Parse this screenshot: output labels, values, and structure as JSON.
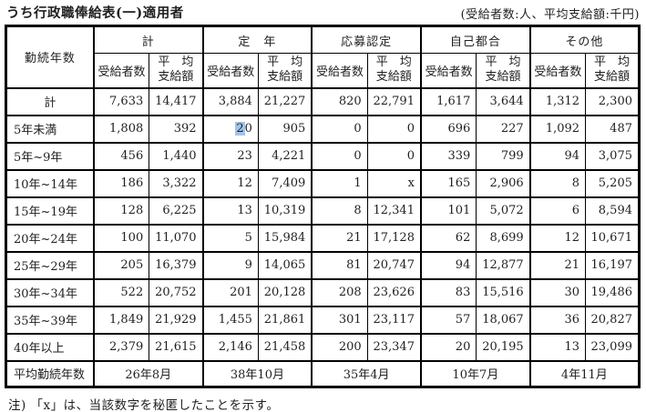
{
  "page": {
    "title": "うち行政職俸給表(一)適用者",
    "unit_note": "(受給者数:人、平均支給額:千円)",
    "footnote": "注) 「x」は、当該数字を秘匿したことを示す。"
  },
  "table": {
    "row_header_label": "勤続年数",
    "groups": [
      "計",
      "定　年",
      "応募認定",
      "自己都合",
      "その他"
    ],
    "sub_headers": {
      "recipients": "受給者数",
      "average_line1": "平　均",
      "average_line2": "支給額"
    },
    "rows": [
      {
        "label": "計",
        "cells": [
          "7,633",
          "14,417",
          "3,884",
          "21,227",
          "820",
          "22,791",
          "1,617",
          "3,644",
          "1,312",
          "2,300"
        ]
      },
      {
        "label": "5年未満",
        "cells": [
          "1,808",
          "392",
          "20",
          "905",
          "0",
          "0",
          "696",
          "227",
          "1,092",
          "487"
        ]
      },
      {
        "label": "5年~9年",
        "cells": [
          "456",
          "1,440",
          "23",
          "4,221",
          "0",
          "0",
          "339",
          "799",
          "94",
          "3,075"
        ]
      },
      {
        "label": "10年~14年",
        "cells": [
          "186",
          "3,322",
          "12",
          "7,409",
          "1",
          "x",
          "165",
          "2,906",
          "8",
          "5,205"
        ]
      },
      {
        "label": "15年~19年",
        "cells": [
          "128",
          "6,225",
          "13",
          "10,319",
          "8",
          "12,341",
          "101",
          "5,072",
          "6",
          "8,594"
        ]
      },
      {
        "label": "20年~24年",
        "cells": [
          "100",
          "11,070",
          "5",
          "15,984",
          "21",
          "17,128",
          "62",
          "8,699",
          "12",
          "10,671"
        ]
      },
      {
        "label": "25年~29年",
        "cells": [
          "205",
          "16,379",
          "9",
          "14,065",
          "81",
          "20,747",
          "94",
          "12,877",
          "21",
          "16,197"
        ]
      },
      {
        "label": "30年~34年",
        "cells": [
          "522",
          "20,752",
          "201",
          "20,128",
          "208",
          "23,626",
          "83",
          "15,516",
          "30",
          "19,486"
        ]
      },
      {
        "label": "35年~39年",
        "cells": [
          "1,849",
          "21,929",
          "1,455",
          "21,861",
          "301",
          "23,117",
          "57",
          "18,067",
          "36",
          "20,827"
        ]
      },
      {
        "label": "40年以上",
        "cells": [
          "2,379",
          "21,615",
          "2,146",
          "21,458",
          "200",
          "23,347",
          "20",
          "20,195",
          "13",
          "23,099"
        ]
      }
    ],
    "footer": {
      "label": "平均勤続年数",
      "cells": [
        "26年8月",
        "38年10月",
        "35年4月",
        "10年7月",
        "4年11月"
      ]
    },
    "highlight": {
      "row": 1,
      "cell": 2,
      "selected_text": "2",
      "rest_text": "0",
      "selection_color": "#a3c3e8"
    }
  }
}
